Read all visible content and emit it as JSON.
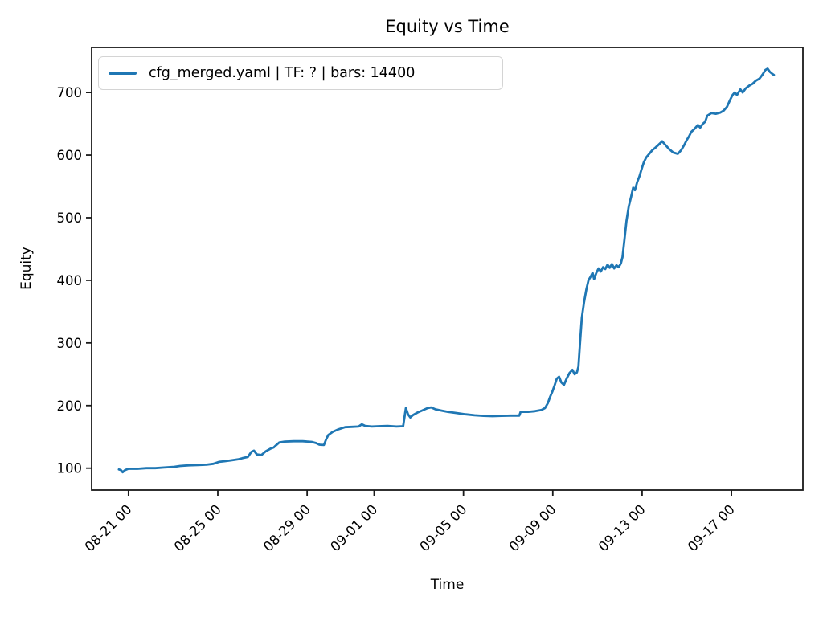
{
  "figure": {
    "background": "#ffffff",
    "text_color": "#000000",
    "spine_color": "#1a1a1a"
  },
  "chart_data": {
    "type": "line",
    "title": "Equity vs Time",
    "xlabel": "Time",
    "ylabel": "Equity",
    "grid": false,
    "legend": {
      "position": "upper left",
      "entries": [
        {
          "label": "cfg_merged.yaml | TF: ? | bars: 14400",
          "color": "#1f77b4"
        }
      ]
    },
    "x_axis": {
      "unit": "days since 08-20 00:00",
      "domain": [
        -0.65,
        31.2
      ],
      "tick_rotation_deg": 45,
      "ticks": [
        {
          "day": 1,
          "label": "08-21 00"
        },
        {
          "day": 5,
          "label": "08-25 00"
        },
        {
          "day": 9,
          "label": "08-29 00"
        },
        {
          "day": 12,
          "label": "09-01 00"
        },
        {
          "day": 16,
          "label": "09-05 00"
        },
        {
          "day": 20,
          "label": "09-09 00"
        },
        {
          "day": 24,
          "label": "09-13 00"
        },
        {
          "day": 28,
          "label": "09-17 00"
        }
      ]
    },
    "y_axis": {
      "domain": [
        65,
        772
      ],
      "ticks": [
        100,
        200,
        300,
        400,
        500,
        600,
        700
      ]
    },
    "series": [
      {
        "name": "cfg_merged.yaml | TF: ? | bars: 14400",
        "color": "#1f77b4",
        "line_width": 2.8,
        "points": [
          [
            0.57,
            98
          ],
          [
            0.66,
            97
          ],
          [
            0.74,
            93.5
          ],
          [
            0.85,
            97
          ],
          [
            1.0,
            99
          ],
          [
            1.4,
            99
          ],
          [
            1.8,
            100
          ],
          [
            2.2,
            100
          ],
          [
            2.6,
            101
          ],
          [
            3.0,
            102
          ],
          [
            3.3,
            103.5
          ],
          [
            3.7,
            104.5
          ],
          [
            4.1,
            105
          ],
          [
            4.5,
            105.5
          ],
          [
            4.8,
            107
          ],
          [
            5.05,
            110
          ],
          [
            5.3,
            111
          ],
          [
            5.6,
            112.5
          ],
          [
            5.9,
            114
          ],
          [
            6.1,
            116
          ],
          [
            6.35,
            118
          ],
          [
            6.5,
            126
          ],
          [
            6.62,
            128
          ],
          [
            6.75,
            122
          ],
          [
            6.95,
            121
          ],
          [
            7.15,
            127
          ],
          [
            7.35,
            131
          ],
          [
            7.5,
            133
          ],
          [
            7.62,
            137
          ],
          [
            7.75,
            141
          ],
          [
            8.0,
            142.5
          ],
          [
            8.4,
            143
          ],
          [
            8.8,
            143
          ],
          [
            9.2,
            142
          ],
          [
            9.4,
            140
          ],
          [
            9.55,
            137.5
          ],
          [
            9.75,
            137
          ],
          [
            9.85,
            146
          ],
          [
            9.95,
            153
          ],
          [
            10.15,
            158
          ],
          [
            10.4,
            162
          ],
          [
            10.7,
            165.5
          ],
          [
            11.0,
            166
          ],
          [
            11.3,
            166.5
          ],
          [
            11.45,
            170
          ],
          [
            11.6,
            167.5
          ],
          [
            11.9,
            166.5
          ],
          [
            12.2,
            167
          ],
          [
            12.6,
            167.5
          ],
          [
            13.0,
            166.5
          ],
          [
            13.3,
            167
          ],
          [
            13.42,
            196
          ],
          [
            13.52,
            186
          ],
          [
            13.62,
            181
          ],
          [
            13.75,
            185
          ],
          [
            13.95,
            189
          ],
          [
            14.15,
            192
          ],
          [
            14.4,
            196
          ],
          [
            14.55,
            197
          ],
          [
            14.75,
            194
          ],
          [
            15.0,
            192
          ],
          [
            15.3,
            190
          ],
          [
            15.7,
            188
          ],
          [
            16.1,
            186
          ],
          [
            16.5,
            184.5
          ],
          [
            16.9,
            183.5
          ],
          [
            17.3,
            183
          ],
          [
            17.7,
            183.5
          ],
          [
            18.1,
            184
          ],
          [
            18.5,
            184
          ],
          [
            18.56,
            190
          ],
          [
            18.9,
            190
          ],
          [
            19.2,
            191
          ],
          [
            19.5,
            193
          ],
          [
            19.65,
            196
          ],
          [
            19.78,
            204
          ],
          [
            19.88,
            214
          ],
          [
            19.98,
            222
          ],
          [
            20.08,
            232
          ],
          [
            20.18,
            243
          ],
          [
            20.28,
            246
          ],
          [
            20.38,
            237
          ],
          [
            20.5,
            233
          ],
          [
            20.62,
            243
          ],
          [
            20.75,
            252
          ],
          [
            20.88,
            257
          ],
          [
            20.98,
            250
          ],
          [
            21.08,
            253
          ],
          [
            21.15,
            262
          ],
          [
            21.22,
            300
          ],
          [
            21.3,
            340
          ],
          [
            21.4,
            365
          ],
          [
            21.5,
            385
          ],
          [
            21.6,
            400
          ],
          [
            21.7,
            406
          ],
          [
            21.78,
            412
          ],
          [
            21.85,
            402
          ],
          [
            21.95,
            412
          ],
          [
            22.05,
            419
          ],
          [
            22.15,
            414
          ],
          [
            22.25,
            421
          ],
          [
            22.35,
            418
          ],
          [
            22.45,
            425
          ],
          [
            22.55,
            420
          ],
          [
            22.65,
            426
          ],
          [
            22.75,
            419
          ],
          [
            22.85,
            424
          ],
          [
            22.95,
            421
          ],
          [
            23.05,
            427
          ],
          [
            23.12,
            437
          ],
          [
            23.2,
            462
          ],
          [
            23.3,
            495
          ],
          [
            23.4,
            518
          ],
          [
            23.5,
            532
          ],
          [
            23.6,
            548
          ],
          [
            23.68,
            544
          ],
          [
            23.78,
            557
          ],
          [
            23.88,
            566
          ],
          [
            23.98,
            578
          ],
          [
            24.08,
            589
          ],
          [
            24.18,
            596
          ],
          [
            24.32,
            602
          ],
          [
            24.46,
            608
          ],
          [
            24.6,
            612
          ],
          [
            24.75,
            617
          ],
          [
            24.9,
            622
          ],
          [
            25.05,
            616
          ],
          [
            25.2,
            610
          ],
          [
            25.4,
            604
          ],
          [
            25.6,
            602
          ],
          [
            25.75,
            608
          ],
          [
            25.9,
            617
          ],
          [
            26.0,
            624
          ],
          [
            26.1,
            630
          ],
          [
            26.2,
            637
          ],
          [
            26.35,
            642
          ],
          [
            26.5,
            648
          ],
          [
            26.6,
            644
          ],
          [
            26.72,
            650
          ],
          [
            26.82,
            653
          ],
          [
            26.92,
            663
          ],
          [
            27.1,
            667
          ],
          [
            27.3,
            666
          ],
          [
            27.5,
            668
          ],
          [
            27.65,
            671
          ],
          [
            27.8,
            677
          ],
          [
            27.95,
            689
          ],
          [
            28.05,
            696
          ],
          [
            28.15,
            700
          ],
          [
            28.25,
            696
          ],
          [
            28.4,
            705
          ],
          [
            28.5,
            700
          ],
          [
            28.65,
            707
          ],
          [
            28.8,
            711
          ],
          [
            28.95,
            714
          ],
          [
            29.1,
            719
          ],
          [
            29.25,
            722
          ],
          [
            29.4,
            729
          ],
          [
            29.52,
            736
          ],
          [
            29.62,
            738
          ],
          [
            29.72,
            733
          ],
          [
            29.82,
            730
          ],
          [
            29.9,
            728
          ]
        ]
      }
    ]
  }
}
